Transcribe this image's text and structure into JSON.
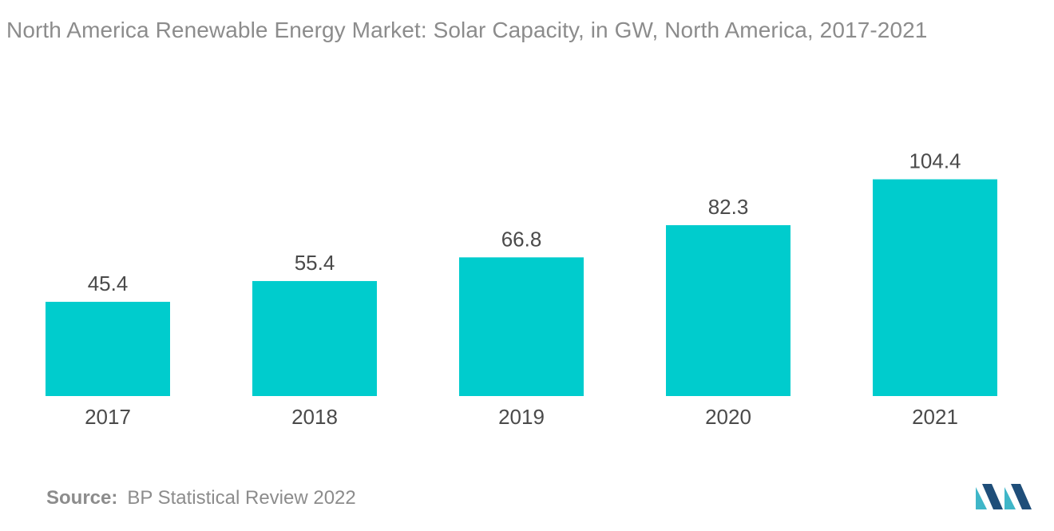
{
  "chart_data": {
    "type": "bar",
    "title": "North America Renewable Energy Market: Solar Capacity, in GW, North America, 2017-2021",
    "categories": [
      "2017",
      "2018",
      "2019",
      "2020",
      "2021"
    ],
    "values": [
      45.4,
      55.4,
      66.8,
      82.3,
      104.4
    ],
    "value_labels": [
      "45.4",
      "55.4",
      "66.8",
      "82.3",
      "104.4"
    ],
    "xlabel": "",
    "ylabel": "",
    "ylim": [
      0,
      110
    ],
    "grid": false,
    "bar_color": "#00cccd"
  },
  "source": {
    "label": "Source:",
    "text": "BP Statistical Review 2022"
  },
  "colors": {
    "text": "#8c8c8c",
    "value_text": "#4a4a4a",
    "logo_dark": "#1f4e79",
    "logo_light": "#3fb6c8"
  }
}
